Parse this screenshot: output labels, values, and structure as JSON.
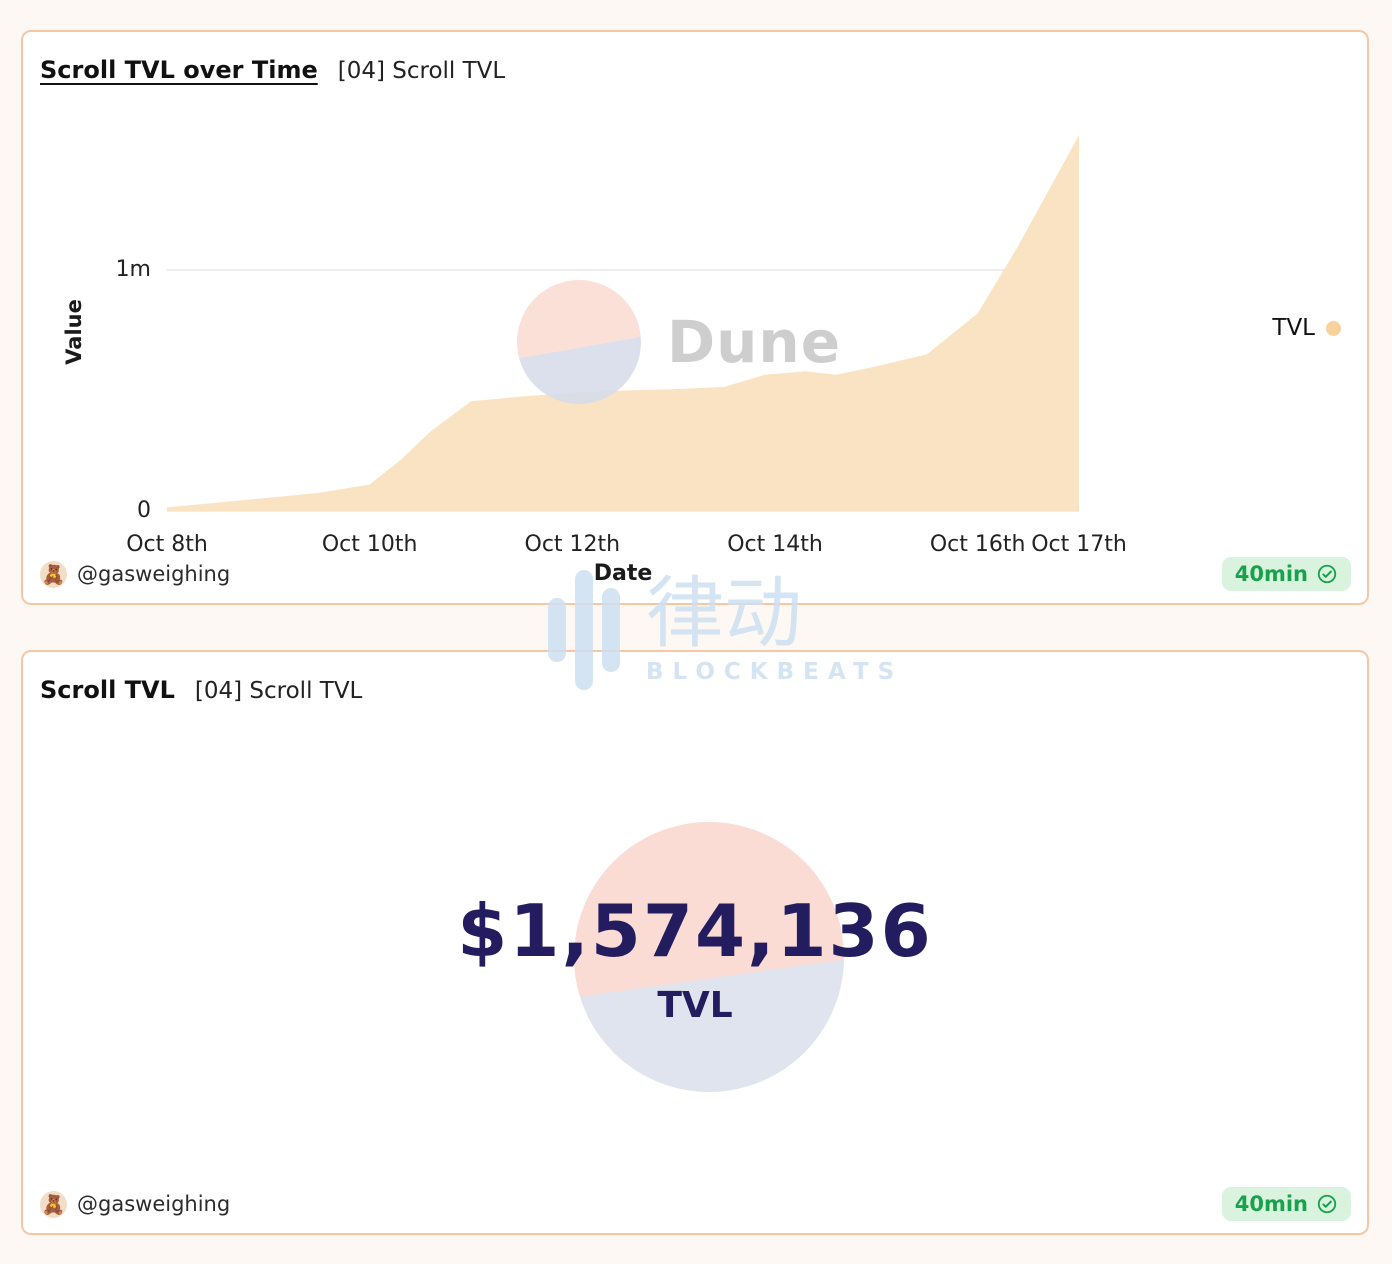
{
  "watermark": {
    "cn": "律动",
    "en": "BLOCKBEATS"
  },
  "dune_watermark": "Dune",
  "colors": {
    "card_border": "#f7c7a3",
    "area_fill": "#fae3c2",
    "legend_dot": "#f7d39b",
    "badge_bg": "#d9f3df",
    "badge_text": "#17a24b",
    "counter_navy": "#231d60",
    "dune_pink": "#fbdcd4",
    "dune_gray": "#dfe4ee",
    "blockbeats_blue": "#cde0f2"
  },
  "card1": {
    "title": "Scroll TVL over Time",
    "subtitle": "[04] Scroll TVL",
    "ylabel": "Value",
    "xlabel": "Date",
    "legend_label": "TVL",
    "author": "@gasweighing",
    "avatar": "🧸",
    "refresh_badge": "40min"
  },
  "card2": {
    "title": "Scroll TVL",
    "subtitle": "[04] Scroll TVL",
    "value": "$1,574,136",
    "value_label": "TVL",
    "author": "@gasweighing",
    "avatar": "🧸",
    "refresh_badge": "40min"
  },
  "chart_data": {
    "type": "area",
    "title": "Scroll TVL over Time",
    "xlabel": "Date",
    "ylabel": "Value",
    "x_tick_labels": [
      "Oct 8th",
      "Oct 10th",
      "Oct 12th",
      "Oct 14th",
      "Oct 16th",
      "Oct 17th"
    ],
    "x_tick_days": [
      8,
      10,
      12,
      14,
      16,
      17
    ],
    "x_range": [
      8,
      17
    ],
    "y_ticks": [
      {
        "label": "0",
        "value": 0
      },
      {
        "label": "1m",
        "value": 1000000
      }
    ],
    "ylim": [
      0,
      1600000
    ],
    "grid": "y-only",
    "legend_position": "right",
    "series": [
      {
        "name": "TVL",
        "type": "area",
        "fill_color": "#fae3c2",
        "dot_color": "#f7d39b",
        "x": [
          8,
          8.5,
          9,
          9.5,
          10,
          10.3,
          10.6,
          11,
          11.5,
          12,
          12.5,
          13,
          13.5,
          13.9,
          14.3,
          14.6,
          15,
          15.5,
          16,
          16.4,
          16.7,
          17
        ],
        "values": [
          15000,
          35000,
          55000,
          75000,
          110000,
          210000,
          330000,
          455000,
          475000,
          490000,
          500000,
          505000,
          515000,
          565000,
          580000,
          565000,
          600000,
          650000,
          820000,
          1100000,
          1330000,
          1560000
        ]
      }
    ]
  }
}
